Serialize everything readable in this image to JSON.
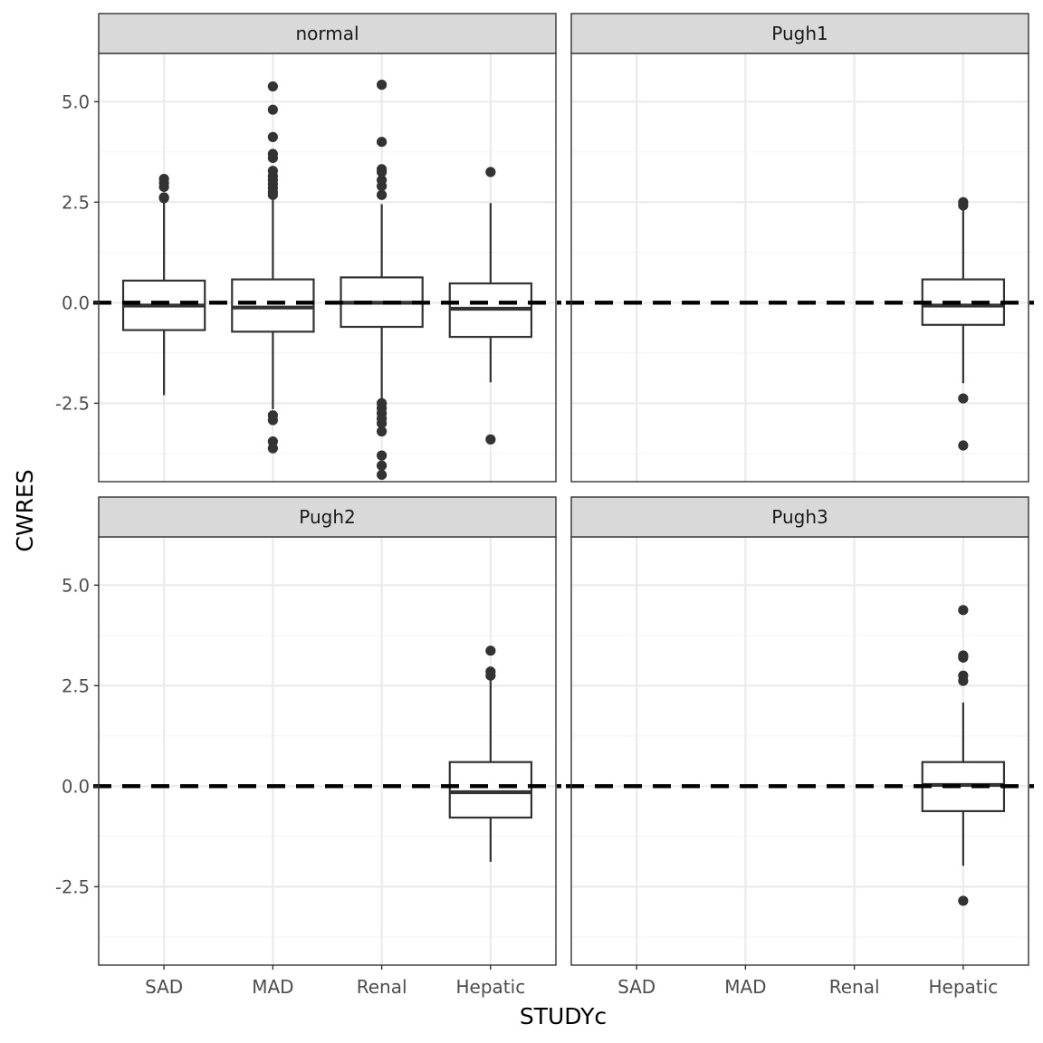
{
  "chart_data": {
    "type": "box",
    "xlabel": "STUDYc",
    "ylabel": "CWRES",
    "categories": [
      "SAD",
      "MAD",
      "Renal",
      "Hepatic"
    ],
    "ylim": [
      -4.45,
      6.2
    ],
    "y_ticks": [
      -2.5,
      0.0,
      2.5,
      5.0
    ],
    "y_tick_labels": [
      "-2.5",
      "0.0",
      "2.5",
      "5.0"
    ],
    "reference_line": {
      "y": 0,
      "style": "dashed"
    },
    "grid": true,
    "facets": [
      {
        "label": "normal",
        "boxes": [
          {
            "category": "SAD",
            "q1": -0.68,
            "median": -0.07,
            "q3": 0.55,
            "whisker_low": -2.3,
            "whisker_high": 2.5,
            "outliers": [
              2.6,
              2.62,
              2.88,
              2.98,
              3.08
            ]
          },
          {
            "category": "MAD",
            "q1": -0.72,
            "median": -0.12,
            "q3": 0.58,
            "whisker_low": -2.65,
            "whisker_high": 2.6,
            "outliers": [
              2.68,
              2.75,
              2.85,
              2.95,
              3.05,
              3.15,
              3.28,
              3.6,
              3.7,
              4.12,
              4.8,
              5.38,
              -2.8,
              -2.92,
              -3.45,
              -3.62
            ]
          },
          {
            "category": "Renal",
            "q1": -0.6,
            "median": 0.0,
            "q3": 0.63,
            "whisker_low": -2.4,
            "whisker_high": 2.45,
            "outliers": [
              2.68,
              2.9,
              3.05,
              3.25,
              3.32,
              4.0,
              5.42,
              -2.5,
              -2.62,
              -2.75,
              -2.88,
              -3.0,
              -3.2,
              -3.8,
              -4.05,
              -4.28
            ]
          },
          {
            "category": "Hepatic",
            "q1": -0.85,
            "median": -0.15,
            "q3": 0.48,
            "whisker_low": -1.98,
            "whisker_high": 2.48,
            "outliers": [
              3.25,
              -3.4
            ]
          }
        ]
      },
      {
        "label": "Pugh1",
        "boxes": [
          {
            "category": "Hepatic",
            "q1": -0.55,
            "median": -0.07,
            "q3": 0.58,
            "whisker_low": -2.0,
            "whisker_high": 2.32,
            "outliers": [
              2.42,
              2.5,
              -2.38,
              -3.55
            ]
          }
        ]
      },
      {
        "label": "Pugh2",
        "boxes": [
          {
            "category": "Hepatic",
            "q1": -0.78,
            "median": -0.15,
            "q3": 0.6,
            "whisker_low": -1.88,
            "whisker_high": 2.65,
            "outliers": [
              2.75,
              2.85,
              3.37
            ]
          }
        ]
      },
      {
        "label": "Pugh3",
        "boxes": [
          {
            "category": "Hepatic",
            "q1": -0.62,
            "median": 0.03,
            "q3": 0.6,
            "whisker_low": -1.98,
            "whisker_high": 2.08,
            "outliers": [
              2.62,
              2.75,
              3.2,
              3.25,
              4.38,
              -2.85
            ]
          }
        ]
      }
    ]
  },
  "colors": {
    "panel_border": "#333333",
    "strip_fill": "#d9d9d9",
    "grid_major": "#ebebeb",
    "grid_minor": "#f5f5f5",
    "box_stroke": "#333333",
    "point_fill": "#333333",
    "ref_line": "#000000"
  }
}
